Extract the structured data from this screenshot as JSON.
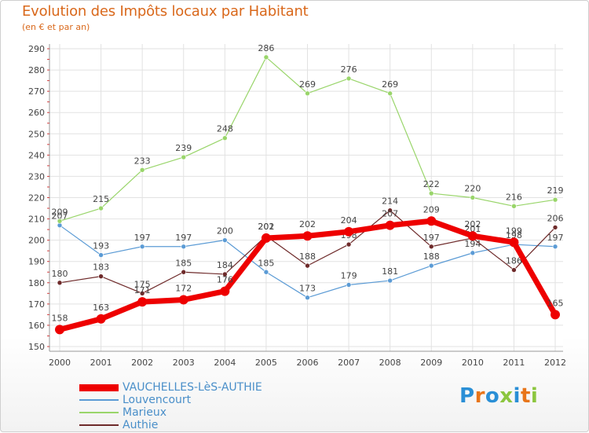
{
  "title": "Evolution des Impôts locaux par Habitant",
  "subtitle": "(en € et par an)",
  "logo": {
    "text": "Proxiti",
    "letters": [
      "P",
      "r",
      "o",
      "x",
      "i",
      "t",
      "i"
    ],
    "colors": [
      "#2a8fd6",
      "#e8751a",
      "#2a8fd6",
      "#8cc63f",
      "#2a8fd6",
      "#e8751a",
      "#8cc63f"
    ]
  },
  "chart_data": {
    "type": "line",
    "title": "Evolution des Impôts locaux par Habitant",
    "subtitle": "(en € et par an)",
    "xlabel": "",
    "ylabel": "",
    "x": [
      "2000",
      "2001",
      "2002",
      "2003",
      "2004",
      "2005",
      "2006",
      "2007",
      "2008",
      "2009",
      "2010",
      "2011",
      "2012"
    ],
    "ylim": [
      150,
      290
    ],
    "yticks": [
      150,
      160,
      170,
      180,
      190,
      200,
      210,
      220,
      230,
      240,
      250,
      260,
      270,
      280,
      290
    ],
    "grid": true,
    "legend_position": "bottom-left",
    "series": [
      {
        "name": "Louvencourt",
        "color": "#5b9bd5",
        "width": 1.2,
        "values": [
          207,
          193,
          197,
          197,
          200,
          185,
          173,
          179,
          181,
          188,
          194,
          198,
          197
        ]
      },
      {
        "name": "Marieux",
        "color": "#99d56a",
        "width": 1.2,
        "values": [
          209,
          215,
          233,
          239,
          248,
          286,
          269,
          276,
          269,
          222,
          220,
          216,
          219
        ]
      },
      {
        "name": "Authie",
        "color": "#6e2a2a",
        "width": 1.2,
        "values": [
          180,
          183,
          175,
          185,
          184,
          202,
          188,
          198,
          214,
          197,
          201,
          186,
          206
        ]
      },
      {
        "name": "VAUCHELLES-LèS-AUTHIE",
        "color": "#ee0000",
        "width": 7,
        "values": [
          158,
          163,
          171,
          172,
          176,
          201,
          202,
          204,
          207,
          209,
          202,
          199,
          165
        ]
      }
    ],
    "legend_order": [
      "VAUCHELLES-LèS-AUTHIE",
      "Louvencourt",
      "Marieux",
      "Authie"
    ]
  }
}
